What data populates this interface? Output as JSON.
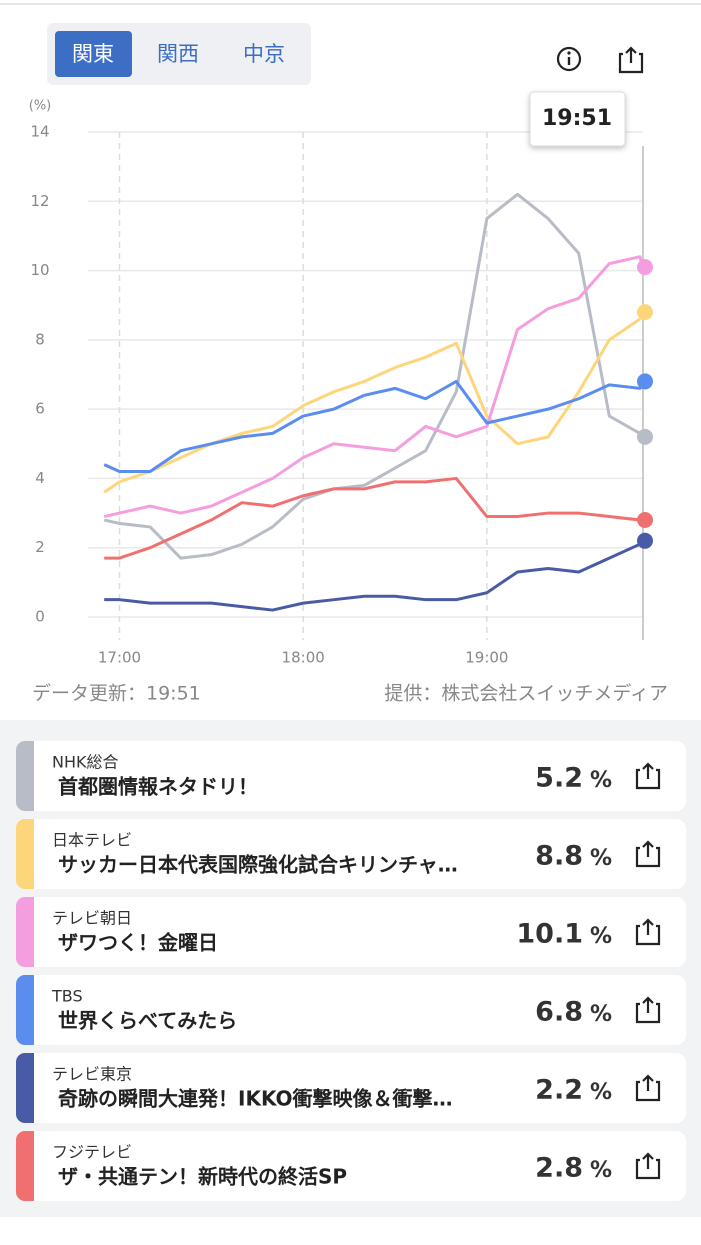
{
  "tabs": [
    "関東",
    "関西",
    "中京"
  ],
  "tooltip": "19:51",
  "chart_data": {
    "type": "line",
    "y_unit": "(%)",
    "x": [
      "16:55",
      "17:00",
      "17:10",
      "17:20",
      "17:30",
      "17:40",
      "17:50",
      "18:00",
      "18:10",
      "18:20",
      "18:30",
      "18:40",
      "18:50",
      "19:00",
      "19:10",
      "19:20",
      "19:30",
      "19:40",
      "19:50",
      "19:51"
    ],
    "xlim": [
      "16:52",
      "19:51"
    ],
    "xticks": [
      "17:00",
      "18:00",
      "19:00"
    ],
    "ylim": [
      0,
      14
    ],
    "yticks": [
      0,
      2,
      4,
      6,
      8,
      10,
      12,
      14
    ],
    "grid": true,
    "series": [
      {
        "color": "#b8bcc6",
        "values": [
          2.8,
          2.7,
          2.6,
          1.7,
          1.8,
          2.1,
          2.6,
          3.4,
          3.7,
          3.8,
          4.3,
          4.8,
          6.5,
          11.5,
          12.2,
          11.5,
          10.5,
          5.8,
          5.3,
          5.2
        ]
      },
      {
        "color": "#fdd57a",
        "values": [
          3.6,
          3.9,
          4.2,
          4.6,
          5.0,
          5.3,
          5.5,
          6.1,
          6.5,
          6.8,
          7.2,
          7.5,
          7.9,
          5.8,
          5.0,
          5.2,
          6.5,
          8.0,
          8.6,
          8.8
        ]
      },
      {
        "color": "#f49ee0",
        "values": [
          2.9,
          3.0,
          3.2,
          3.0,
          3.2,
          3.6,
          4.0,
          4.6,
          5.0,
          4.9,
          4.8,
          5.5,
          5.2,
          5.5,
          8.3,
          8.9,
          9.2,
          10.2,
          10.4,
          10.1
        ]
      },
      {
        "color": "#5b8def",
        "values": [
          4.4,
          4.2,
          4.2,
          4.8,
          5.0,
          5.2,
          5.3,
          5.8,
          6.0,
          6.4,
          6.6,
          6.3,
          6.8,
          5.6,
          5.8,
          6.0,
          6.3,
          6.7,
          6.6,
          6.8
        ]
      },
      {
        "color": "#4a5ba6",
        "values": [
          0.5,
          0.5,
          0.4,
          0.4,
          0.4,
          0.3,
          0.2,
          0.4,
          0.5,
          0.6,
          0.6,
          0.5,
          0.5,
          0.7,
          1.3,
          1.4,
          1.3,
          1.7,
          2.1,
          2.2
        ]
      },
      {
        "color": "#f07070",
        "values": [
          1.7,
          1.7,
          2.0,
          2.4,
          2.8,
          3.3,
          3.2,
          3.5,
          3.7,
          3.7,
          3.9,
          3.9,
          4.0,
          2.9,
          2.9,
          3.0,
          3.0,
          2.9,
          2.8,
          2.8
        ]
      }
    ]
  },
  "footer": {
    "updated": "データ更新：19:51",
    "source": "提供：株式会社スイッチメディア"
  },
  "programs": {
    "unit": "%",
    "items": [
      {
        "channel": "NHK総合",
        "title": "首都圏情報ネタドリ！",
        "rating": 5.2
      },
      {
        "channel": "日本テレビ",
        "title": "サッカー日本代表国際強化試合キリンチャ…",
        "rating": 8.8
      },
      {
        "channel": "テレビ朝日",
        "title": "ザワつく！金曜日",
        "rating": 10.1
      },
      {
        "channel": "TBS",
        "title": "世界くらべてみたら",
        "rating": 6.8
      },
      {
        "channel": "テレビ東京",
        "title": "奇跡の瞬間大連発！IKKO衝撃映像＆衝撃…",
        "rating": 2.2
      },
      {
        "channel": "フジテレビ",
        "title": "ザ・共通テン！新時代の終活SP",
        "rating": 2.8
      }
    ]
  }
}
